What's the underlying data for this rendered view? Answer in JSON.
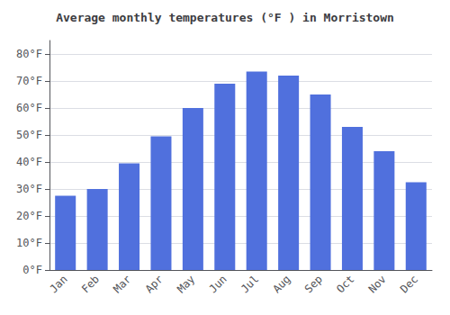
{
  "chart_data": {
    "type": "bar",
    "title": "Average monthly temperatures (°F ) in Morristown",
    "categories": [
      "Jan",
      "Feb",
      "Mar",
      "Apr",
      "May",
      "Jun",
      "Jul",
      "Aug",
      "Sep",
      "Oct",
      "Nov",
      "Dec"
    ],
    "values": [
      27.5,
      30.0,
      39.5,
      49.5,
      60.0,
      69.0,
      73.5,
      72.0,
      65.0,
      53.0,
      44.0,
      32.5
    ],
    "ylim": [
      0,
      85
    ],
    "yticks": [
      {
        "value": 0,
        "label": "0°F"
      },
      {
        "value": 10,
        "label": "10°F"
      },
      {
        "value": 20,
        "label": "20°F"
      },
      {
        "value": 30,
        "label": "30°F"
      },
      {
        "value": 40,
        "label": "40°F"
      },
      {
        "value": 50,
        "label": "50°F"
      },
      {
        "value": 60,
        "label": "60°F"
      },
      {
        "value": 70,
        "label": "70°F"
      },
      {
        "value": 80,
        "label": "80°F"
      }
    ],
    "grid": true
  }
}
